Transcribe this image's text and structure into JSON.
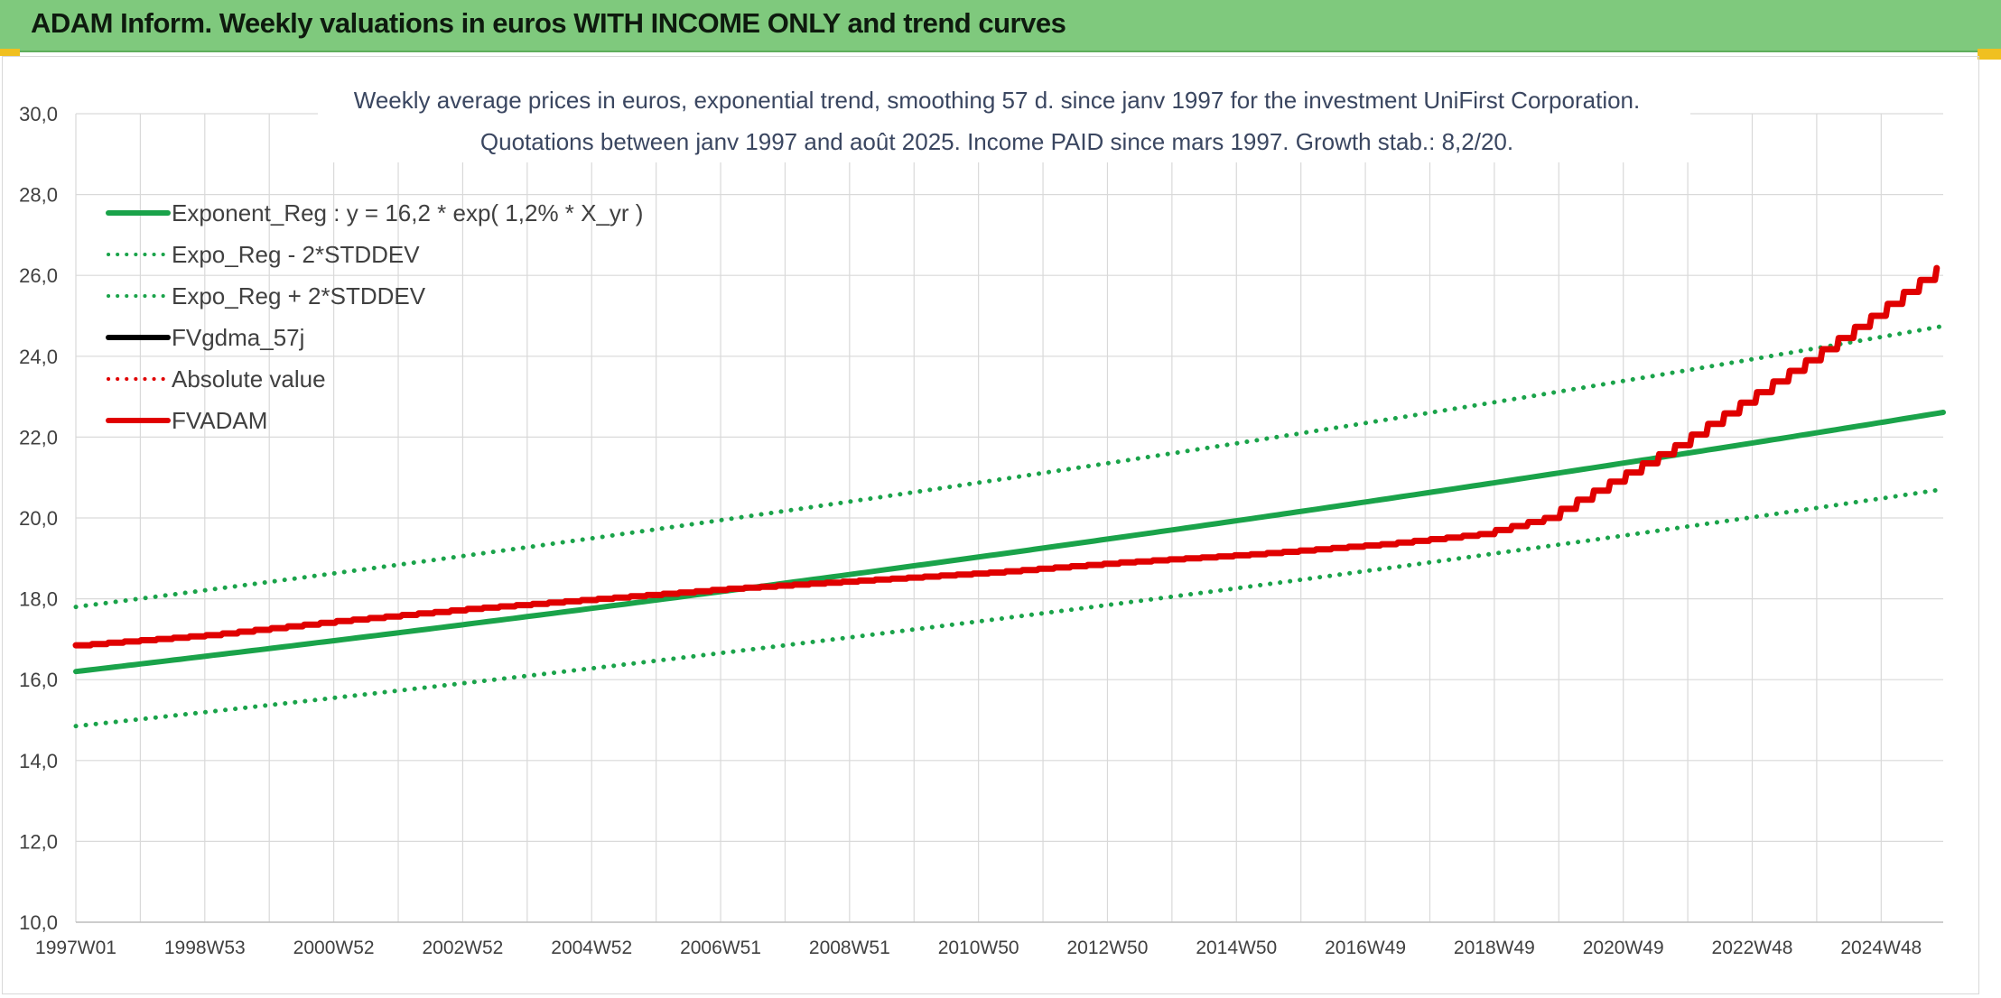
{
  "header": {
    "title": "ADAM Inform. Weekly valuations in euros WITH INCOME ONLY and trend curves"
  },
  "chart_data": {
    "type": "line",
    "title": "Weekly average prices in euros, exponential trend, smoothing 57 d. since janv 1997 for the investment UniFirst Corporation.",
    "subtitle": "Quotations between janv 1997 and août 2025. Income PAID since mars 1997. Growth stab.: 8,2/20.",
    "x_tick_labels": [
      "1997W01",
      "1998W53",
      "2000W52",
      "2002W52",
      "2004W52",
      "2006W51",
      "2008W51",
      "2010W50",
      "2012W50",
      "2014W50",
      "2016W49",
      "2018W49",
      "2020W49",
      "2022W48",
      "2024W48"
    ],
    "x_range": [
      1997.0,
      2025.6
    ],
    "ylim": [
      10.0,
      30.0
    ],
    "y_tick_labels": [
      "10,0",
      "12,0",
      "14,0",
      "16,0",
      "18,0",
      "20,0",
      "22,0",
      "24,0",
      "26,0",
      "28,0",
      "30,0"
    ],
    "grid": true,
    "legend_position": "top-left",
    "legend": [
      {
        "label": "Exponent_Reg : y = 16,2 * exp( 1,2% *  X_yr )",
        "color": "#1aa34a",
        "style": "solid"
      },
      {
        "label": "Expo_Reg - 2*STDDEV",
        "color": "#1aa34a",
        "style": "dotted"
      },
      {
        "label": "Expo_Reg + 2*STDDEV",
        "color": "#1aa34a",
        "style": "dotted"
      },
      {
        "label": "FVgdma_57j",
        "color": "#000000",
        "style": "solid"
      },
      {
        "label": "Absolute value",
        "color": "#e00000",
        "style": "dotted"
      },
      {
        "label": "FVADAM",
        "color": "#e00000",
        "style": "solid"
      }
    ],
    "series": [
      {
        "name": "Exponent_Reg : y = 16,2 * exp( 1,2% *  X_yr )",
        "color": "#1aa34a",
        "style": "solid",
        "x": [
          1997.0,
          2025.6
        ],
        "y": [
          16.2,
          22.6
        ],
        "model": "exponential",
        "a": 16.2,
        "rate": 0.01166
      },
      {
        "name": "Expo_Reg - 2*STDDEV",
        "color": "#1aa34a",
        "style": "dotted",
        "x": [
          1997.0,
          2025.6
        ],
        "y": [
          14.85,
          20.7
        ],
        "model": "exponential",
        "a": 14.85,
        "rate": 0.01163
      },
      {
        "name": "Expo_Reg + 2*STDDEV",
        "color": "#1aa34a",
        "style": "dotted",
        "x": [
          1997.0,
          2025.6
        ],
        "y": [
          17.8,
          24.75
        ],
        "model": "exponential",
        "a": 17.8,
        "rate": 0.01152
      },
      {
        "name": "FVADAM",
        "color": "#e00000",
        "style": "solid",
        "stepped": true,
        "x": [
          1997.0,
          1999.0,
          2001.0,
          2003.0,
          2005.0,
          2007.0,
          2009.0,
          2011.0,
          2013.0,
          2015.0,
          2017.0,
          2018.5,
          2019.5,
          2020.5,
          2021.5,
          2022.5,
          2023.5,
          2024.5,
          2025.6
        ],
        "y": [
          16.85,
          17.1,
          17.45,
          17.75,
          18.0,
          18.25,
          18.45,
          18.65,
          18.9,
          19.1,
          19.35,
          19.6,
          20.0,
          20.9,
          21.8,
          22.85,
          23.9,
          25.0,
          26.3
        ]
      }
    ]
  }
}
